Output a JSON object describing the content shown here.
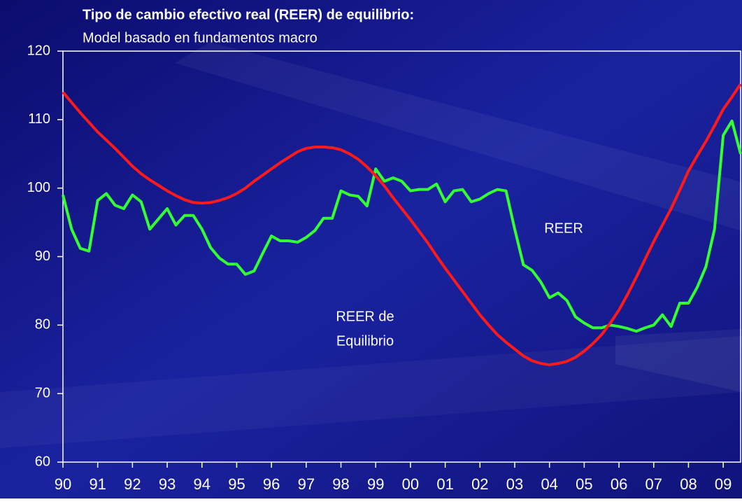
{
  "chart_data": {
    "type": "line",
    "title": "Tipo de cambio efectivo real (REER) de equilibrio:",
    "subtitle": "Model basado en fundamentos macro",
    "x": [
      1990,
      1990.25,
      1990.5,
      1990.75,
      1991,
      1991.25,
      1991.5,
      1991.75,
      1992,
      1992.25,
      1992.5,
      1992.75,
      1993,
      1993.25,
      1993.5,
      1993.75,
      1994,
      1994.25,
      1994.5,
      1994.75,
      1995,
      1995.25,
      1995.5,
      1995.75,
      1996,
      1996.25,
      1996.5,
      1996.75,
      1997,
      1997.25,
      1997.5,
      1997.75,
      1998,
      1998.25,
      1998.5,
      1998.75,
      1999,
      1999.25,
      1999.5,
      1999.75,
      2000,
      2000.25,
      2000.5,
      2000.75,
      2001,
      2001.25,
      2001.5,
      2001.75,
      2002,
      2002.25,
      2002.5,
      2002.75,
      2003,
      2003.25,
      2003.5,
      2003.75,
      2004,
      2004.25,
      2004.5,
      2004.75,
      2005,
      2005.25,
      2005.5,
      2005.75,
      2006,
      2006.25,
      2006.5,
      2006.75,
      2007,
      2007.25,
      2007.5,
      2007.75,
      2008,
      2008.25,
      2008.5,
      2008.75,
      2009,
      2009.25,
      2009.5
    ],
    "series": [
      {
        "name": "REER",
        "color": "#33ff33",
        "values": [
          99,
          94,
          91.2,
          90.8,
          98.2,
          99.2,
          97.5,
          97,
          99,
          98,
          94,
          95.5,
          97,
          94.6,
          96,
          96,
          94,
          91.3,
          89.8,
          88.9,
          88.9,
          87.4,
          87.9,
          90.5,
          93,
          92.3,
          92.3,
          92.1,
          92.8,
          93.8,
          95.6,
          95.6,
          99.6,
          99,
          98.8,
          97.4,
          102.8,
          101,
          101.5,
          101,
          99.6,
          99.8,
          99.8,
          100.6,
          98,
          99.6,
          99.8,
          98,
          98.4,
          99.2,
          99.8,
          99.6,
          94,
          88.8,
          88,
          86.3,
          84,
          84.7,
          83.6,
          81.2,
          80.3,
          79.6,
          79.6,
          80,
          79.8,
          79.5,
          79.1,
          79.6,
          80,
          81.5,
          79.8,
          83.2,
          83.2,
          85.5,
          88.5,
          94,
          107.7,
          109.8,
          105
        ]
      },
      {
        "name": "REER de Equilibrio",
        "color": "#ff1a1a",
        "values": [
          114,
          112.5,
          111,
          109.6,
          108.2,
          107,
          105.8,
          104.5,
          103.2,
          102.1,
          101.2,
          100.4,
          99.6,
          98.9,
          98.3,
          97.9,
          97.8,
          97.9,
          98.2,
          98.6,
          99.2,
          100,
          101,
          101.9,
          102.8,
          103.7,
          104.5,
          105.3,
          105.8,
          106,
          106,
          105.9,
          105.6,
          105,
          104.2,
          103.1,
          101.8,
          100.3,
          98.6,
          97,
          95.4,
          93.7,
          92,
          90.1,
          88.3,
          86.6,
          84.9,
          83.2,
          81.5,
          80,
          78.6,
          77.5,
          76.5,
          75.5,
          74.8,
          74.4,
          74.2,
          74.4,
          74.7,
          75.3,
          76.2,
          77.3,
          78.6,
          80.3,
          82.2,
          84.5,
          87,
          89.6,
          92.2,
          94.6,
          97,
          99.7,
          102.5,
          104.7,
          106.8,
          109.1,
          111.5,
          113.3,
          115.2
        ]
      }
    ],
    "annotations": [
      [
        "REER"
      ],
      [
        "REER de",
        "Equilibrio"
      ]
    ],
    "xlim": [
      1990,
      2009.5
    ],
    "xticks": [
      {
        "value": 1990,
        "label": "90"
      },
      {
        "value": 1991,
        "label": "91"
      },
      {
        "value": 1992,
        "label": "92"
      },
      {
        "value": 1993,
        "label": "93"
      },
      {
        "value": 1994,
        "label": "94"
      },
      {
        "value": 1995,
        "label": "95"
      },
      {
        "value": 1996,
        "label": "96"
      },
      {
        "value": 1997,
        "label": "97"
      },
      {
        "value": 1998,
        "label": "98"
      },
      {
        "value": 1999,
        "label": "99"
      },
      {
        "value": 2000,
        "label": "00"
      },
      {
        "value": 2001,
        "label": "01"
      },
      {
        "value": 2002,
        "label": "02"
      },
      {
        "value": 2003,
        "label": "03"
      },
      {
        "value": 2004,
        "label": "04"
      },
      {
        "value": 2005,
        "label": "05"
      },
      {
        "value": 2006,
        "label": "06"
      },
      {
        "value": 2007,
        "label": "07"
      },
      {
        "value": 2008,
        "label": "08"
      },
      {
        "value": 2009,
        "label": "09"
      }
    ],
    "ylim": [
      60,
      120
    ],
    "yticks": [
      60,
      70,
      80,
      90,
      100,
      110,
      120
    ],
    "grid": false
  }
}
